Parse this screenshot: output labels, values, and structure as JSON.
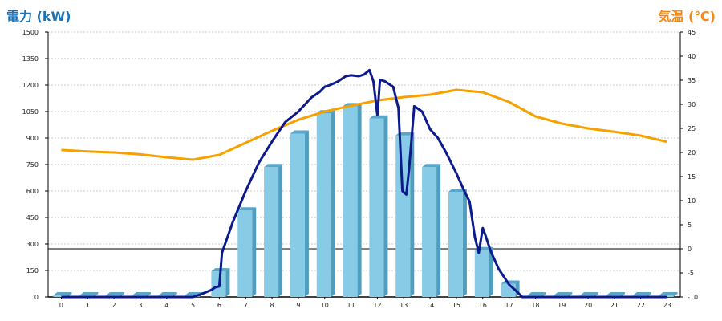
{
  "header": {
    "left_title": "電力 (kW)",
    "right_title": "気温 (℃)"
  },
  "colors": {
    "left_title": "#1a73b8",
    "right_title": "#f08a1c",
    "bar_front": "#87cbe6",
    "bar_side": "#4f9dbf",
    "bar_top": "#5aa6c8",
    "power_line": "#0c1a8c",
    "temp_line": "#f7a100",
    "grid": "#bbbbbb",
    "axis": "#000000"
  },
  "chart_data": {
    "type": "bar",
    "categories": [
      "0",
      "1",
      "2",
      "3",
      "4",
      "5",
      "6",
      "7",
      "8",
      "9",
      "10",
      "11",
      "12",
      "13",
      "14",
      "15",
      "16",
      "17",
      "18",
      "19",
      "20",
      "21",
      "22",
      "23"
    ],
    "series": [
      {
        "values": [
          0,
          0,
          0,
          0,
          0,
          0,
          145,
          490,
          735,
          925,
          1040,
          1080,
          1010,
          915,
          735,
          595,
          265,
          75,
          0,
          0,
          0,
          0,
          0,
          0
        ]
      }
    ],
    "power_line": {
      "x": [
        0,
        1,
        2,
        3,
        4,
        5,
        5.3,
        5.7,
        5.85,
        6.0,
        6.1,
        6.5,
        7.0,
        7.5,
        8.0,
        8.5,
        9.0,
        9.5,
        9.8,
        10.0,
        10.2,
        10.5,
        10.8,
        11.0,
        11.3,
        11.5,
        11.7,
        11.85,
        12.0,
        12.1,
        12.3,
        12.6,
        12.8,
        12.95,
        13.1,
        13.2,
        13.4,
        13.7,
        14.0,
        14.3,
        14.6,
        15.0,
        15.3,
        15.5,
        15.7,
        15.85,
        16.0,
        16.1,
        16.3,
        16.6,
        17.0,
        17.3,
        17.5,
        18,
        19,
        20,
        21,
        22,
        23
      ],
      "y": [
        0,
        0,
        0,
        0,
        0,
        0,
        15,
        40,
        55,
        60,
        250,
        420,
        600,
        760,
        880,
        990,
        1050,
        1130,
        1160,
        1190,
        1200,
        1220,
        1250,
        1255,
        1250,
        1260,
        1285,
        1220,
        1030,
        1230,
        1220,
        1190,
        1070,
        600,
        580,
        720,
        1080,
        1050,
        950,
        900,
        820,
        700,
        600,
        540,
        340,
        250,
        390,
        350,
        260,
        160,
        70,
        30,
        0,
        0,
        0,
        0,
        0,
        0,
        0
      ]
    },
    "temperature_line": {
      "x": [
        0,
        1,
        2,
        3,
        4,
        5,
        6,
        7,
        8,
        9,
        10,
        11,
        12,
        13,
        14,
        15,
        16,
        17,
        18,
        19,
        20,
        21,
        22,
        23
      ],
      "y": [
        20.5,
        20.2,
        20,
        19.6,
        19,
        18.5,
        19.5,
        22,
        24.5,
        26.8,
        28.5,
        29.7,
        30.8,
        31.5,
        32,
        33,
        32.5,
        30.5,
        27.5,
        26,
        25,
        24.3,
        23.5,
        22.2
      ]
    },
    "ylim_left": [
      0,
      1500
    ],
    "ylim_right": [
      -10,
      45
    ],
    "yticks_left": [
      "0",
      "150",
      "300",
      "450",
      "600",
      "750",
      "900",
      "1050",
      "1200",
      "1350",
      "1500"
    ],
    "yticks_right": [
      "-10",
      "-5",
      "0",
      "5",
      "10",
      "15",
      "20",
      "25",
      "30",
      "35",
      "40",
      "45"
    ],
    "grid": true
  }
}
